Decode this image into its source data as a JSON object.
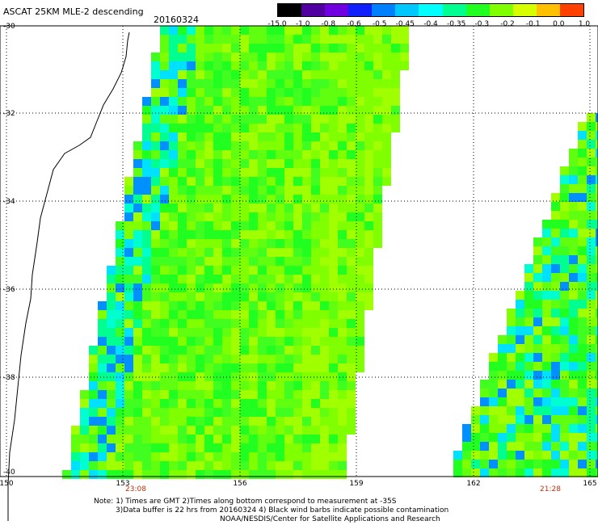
{
  "header": {
    "title": "ASCAT 25KM MLE-2 descending",
    "date": "20160324"
  },
  "colorbar": {
    "labels": [
      "-15.0",
      "-1.0",
      "-0.8",
      "-0.6",
      "-0.5",
      "-0.45",
      "-0.4",
      "-0.35",
      "-0.3",
      "-0.2",
      "-0.1",
      "0.0",
      "1.0"
    ],
    "colors": [
      "#000000",
      "#5000a0",
      "#7000e0",
      "#1020ff",
      "#0080ff",
      "#00c8ff",
      "#00ffff",
      "#00ff90",
      "#20ff20",
      "#80ff00",
      "#d8ff00",
      "#ffc000",
      "#ff4000"
    ]
  },
  "map": {
    "lat_labels": [
      "-30",
      "-32",
      "-34",
      "-36",
      "-38",
      "-40"
    ],
    "lon_labels": [
      "150",
      "153",
      "156",
      "159",
      "162",
      "165"
    ],
    "times": [
      "23:08",
      "21:28"
    ]
  },
  "notes": {
    "line1": "Note: 1) Times are GMT 2)Times along bottom correspond to measurement at -35S",
    "line2": "3)Data buffer is 22 hrs from 20160324 4) Black wind barbs indicate possible contamination",
    "line3": "NOAA/NESDIS/Center for Satellite Applications and Research"
  }
}
